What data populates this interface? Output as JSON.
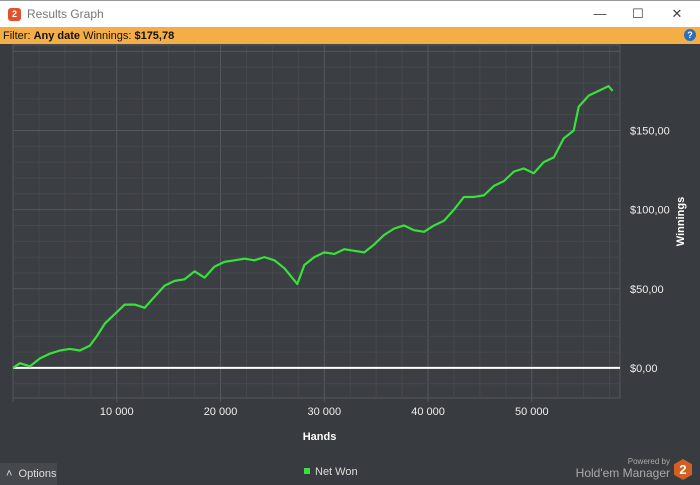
{
  "window": {
    "title": "Results Graph",
    "controls": [
      "minimize",
      "maximize",
      "close"
    ]
  },
  "filter": {
    "label": "Filter:",
    "date": "Any date",
    "winnings_label": "Winnings:",
    "winnings": "$175,78",
    "help": "?"
  },
  "chart_data": {
    "type": "line",
    "xlabel": "Hands",
    "ylabel": "Winnings",
    "xlim": [
      0,
      58500
    ],
    "ylim": [
      -19,
      204
    ],
    "x_ticks": [
      10000,
      20000,
      30000,
      40000,
      50000
    ],
    "x_tick_labels": [
      "10 000",
      "20 000",
      "30 000",
      "40 000",
      "50 000"
    ],
    "y_ticks": [
      0,
      50,
      100,
      150
    ],
    "y_tick_labels": [
      "$0,00",
      "$50,00",
      "$100,00",
      "$150,00"
    ],
    "y_axis_side": "right",
    "grid": true,
    "legend": "bottom-center",
    "colors": {
      "line": "#37e23a",
      "zero_line": "#ffffff"
    },
    "series": [
      {
        "name": "Net Won",
        "x": [
          0,
          670,
          1630,
          2600,
          3560,
          4520,
          5480,
          6440,
          7400,
          8080,
          8850,
          9810,
          10770,
          11730,
          12690,
          13650,
          14620,
          15580,
          16540,
          17500,
          18460,
          19420,
          20380,
          21350,
          22310,
          23270,
          24230,
          25190,
          26150,
          27400,
          28080,
          29040,
          30000,
          30960,
          31920,
          32880,
          33850,
          34810,
          35770,
          36730,
          37690,
          38650,
          39620,
          40580,
          41540,
          42500,
          43460,
          44420,
          45380,
          46350,
          47310,
          48270,
          49230,
          50190,
          51150,
          52120,
          53080,
          54040,
          54520,
          55480,
          56440,
          57400,
          57790
        ],
        "y": [
          0,
          3,
          1,
          6,
          9,
          11,
          12,
          11,
          14,
          20,
          28,
          34,
          40,
          40,
          38,
          45,
          52,
          55,
          56,
          61,
          57,
          64,
          67,
          68,
          69,
          68,
          70,
          68,
          63,
          53,
          65,
          70,
          73,
          72,
          75,
          74,
          73,
          78,
          84,
          88,
          90,
          87,
          86,
          90,
          93,
          100,
          108,
          108,
          109,
          115,
          118,
          124,
          126,
          123,
          130,
          133,
          145,
          150,
          165,
          172,
          175,
          178,
          175
        ]
      }
    ]
  },
  "footer": {
    "options": "Options",
    "legend": "Net Won",
    "powered_by": "Powered by",
    "brand": "Hold'em Manager",
    "brand_logo": "2"
  }
}
